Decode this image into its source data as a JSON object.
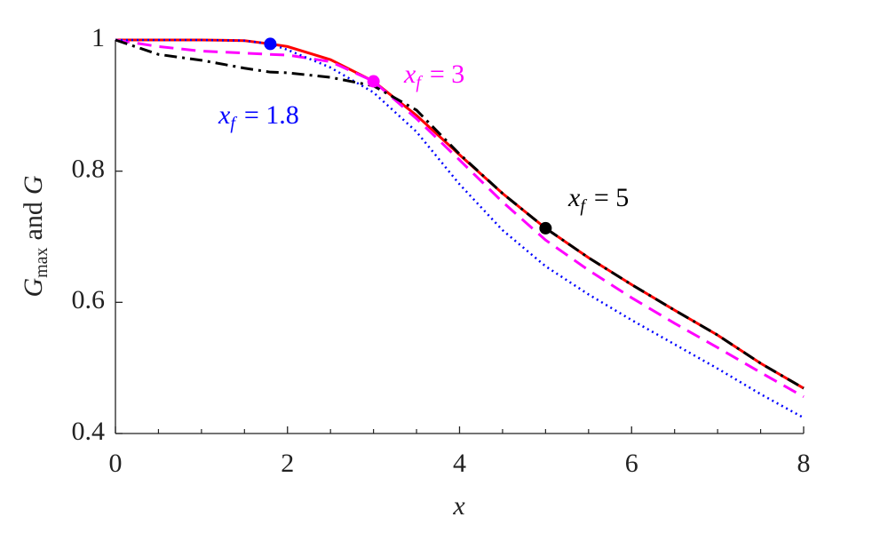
{
  "chart_data": {
    "type": "line",
    "xlabel": "x",
    "ylabel": {
      "var": "G",
      "sub": "max",
      "rest": "and",
      "var2": "G"
    },
    "x": [
      0,
      0.5,
      1,
      1.5,
      1.8,
      2,
      2.5,
      3,
      3.5,
      4,
      4.5,
      5,
      5.5,
      6,
      6.5,
      7,
      7.5,
      8
    ],
    "series": [
      {
        "color": "#ff0000",
        "style": "solid",
        "values": [
          1,
          1,
          1,
          0.999,
          0.994,
          0.99,
          0.97,
          0.937,
          0.885,
          0.825,
          0.766,
          0.713,
          0.668,
          0.627,
          0.588,
          0.55,
          0.507,
          0.469
        ]
      },
      {
        "color": "#ff00ff",
        "style": "dashed",
        "values": [
          1,
          0.99,
          0.983,
          0.98,
          0.978,
          0.977,
          0.967,
          0.937,
          0.88,
          0.817,
          0.753,
          0.695,
          0.649,
          0.607,
          0.568,
          0.531,
          0.493,
          0.456
        ]
      },
      {
        "color": "#0000ff",
        "style": "dotted",
        "values": [
          1,
          1,
          1,
          0.999,
          0.994,
          0.985,
          0.958,
          0.92,
          0.86,
          0.78,
          0.71,
          0.655,
          0.612,
          0.573,
          0.536,
          0.499,
          0.46,
          0.424
        ]
      },
      {
        "color": "#000000",
        "style": "dashdot",
        "values": [
          1,
          0.978,
          0.969,
          0.957,
          0.951,
          0.95,
          0.943,
          0.93,
          0.893,
          0.826,
          0.766,
          0.713,
          0.668,
          0.627,
          0.588,
          0.55,
          0.507,
          0.469
        ]
      }
    ],
    "markers": [
      {
        "x": 1.8,
        "y": 0.994,
        "color": "#0000ff"
      },
      {
        "x": 3,
        "y": 0.937,
        "color": "#ff00ff"
      },
      {
        "x": 5,
        "y": 0.713,
        "color": "#000000"
      }
    ],
    "annotations": [
      {
        "var": "x",
        "sub": "f",
        "eq": "= 3",
        "color": "#ff00ff"
      },
      {
        "var": "x",
        "sub": "f",
        "eq": "= 1.8",
        "color": "#0000ff"
      },
      {
        "var": "x",
        "sub": "f",
        "eq": "= 5",
        "color": "#000000"
      }
    ],
    "xlim": [
      0,
      8
    ],
    "ylim": [
      0.4,
      1
    ],
    "xticks": [
      0,
      2,
      4,
      6,
      8
    ],
    "xminorticks": [
      0.5,
      1,
      1.5,
      2.5,
      3,
      3.5,
      4.5,
      5,
      5.5,
      6.5,
      7,
      7.5
    ],
    "yticks": [
      0.4,
      0.6,
      0.8,
      1
    ]
  }
}
